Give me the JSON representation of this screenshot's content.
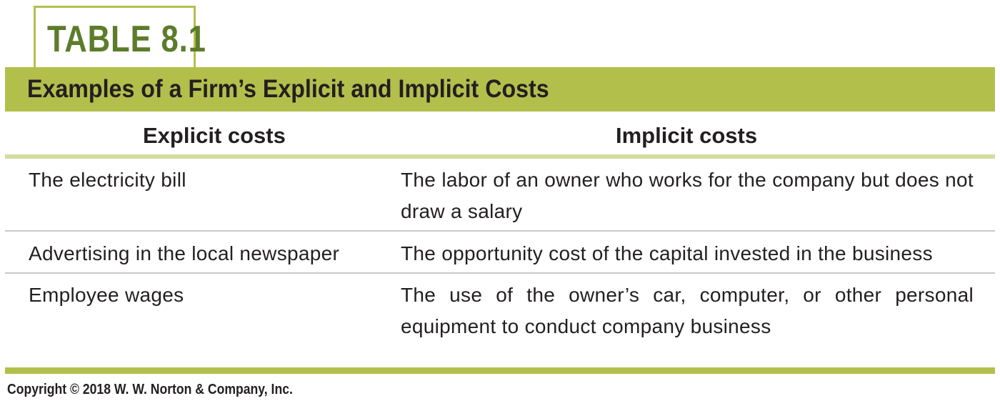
{
  "table": {
    "label": "TABLE 8.1",
    "title": "Examples of a Firm’s Explicit and Implicit Costs",
    "headers": {
      "explicit": "Explicit costs",
      "implicit": "Implicit costs"
    },
    "rows": [
      {
        "explicit": "The electricity bill",
        "implicit": "The labor of an owner who works for the company but does not draw a salary"
      },
      {
        "explicit": "Advertising in the local newspaper",
        "implicit": "The opportunity cost of the capital invested in the business"
      },
      {
        "explicit": "Employee wages",
        "implicit": "The use of the owner’s car, computer, or other personal equipment to conduct company business"
      }
    ]
  },
  "footer": {
    "copyright": "Copyright © 2018 W. W. Norton & Company, Inc."
  },
  "colors": {
    "accent": "#b3bf4b",
    "label_green": "#5c7c2b",
    "header_rule": "#d4dba0",
    "row_rule": "#c9c9c9"
  }
}
